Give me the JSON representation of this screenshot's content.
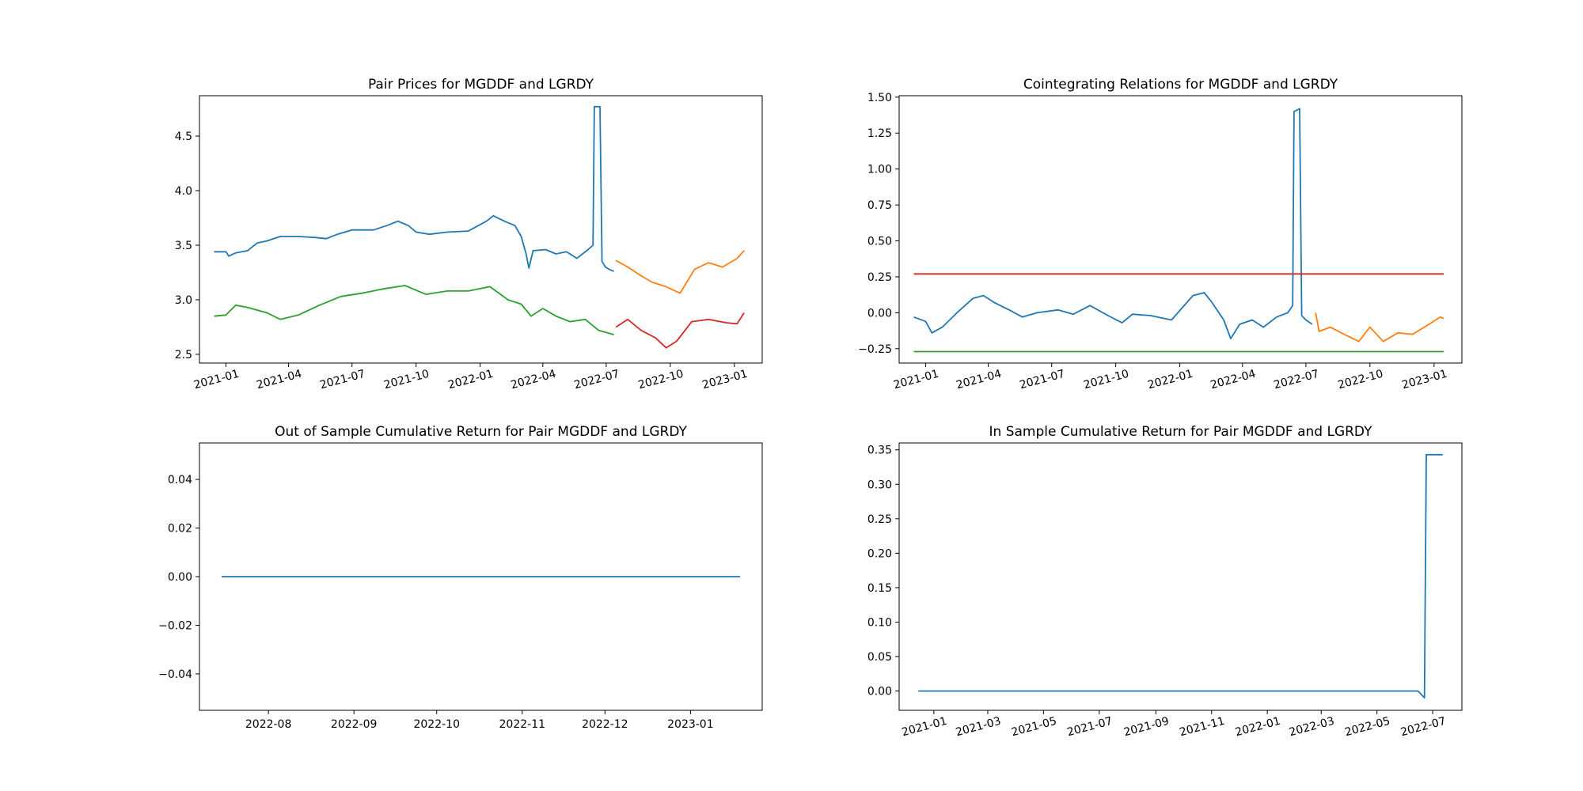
{
  "colors": {
    "blue": "#1f77b4",
    "orange": "#ff7f0e",
    "green": "#2ca02c",
    "red": "#d62728"
  },
  "chart_data": [
    {
      "type": "line",
      "title": "Pair Prices for MGDDF and LGRDY",
      "xlabel": "",
      "ylabel": "",
      "x_type": "date",
      "xlim": [
        "2020-11-24",
        "2023-02-10"
      ],
      "ylim": [
        2.42,
        4.87
      ],
      "grid": false,
      "xticks": [
        "2021-01",
        "2021-04",
        "2021-07",
        "2021-10",
        "2022-01",
        "2022-04",
        "2022-07",
        "2022-10",
        "2023-01"
      ],
      "yticks": [
        2.5,
        3.0,
        3.5,
        4.0,
        4.5
      ],
      "ytick_format": 1,
      "series": [
        {
          "color": "#1f77b4",
          "points": [
            [
              "2020-12-15",
              3.44
            ],
            [
              "2021-01-01",
              3.44
            ],
            [
              "2021-01-05",
              3.4
            ],
            [
              "2021-01-15",
              3.43
            ],
            [
              "2021-02-01",
              3.45
            ],
            [
              "2021-02-15",
              3.52
            ],
            [
              "2021-03-01",
              3.54
            ],
            [
              "2021-03-20",
              3.58
            ],
            [
              "2021-04-15",
              3.58
            ],
            [
              "2021-05-10",
              3.57
            ],
            [
              "2021-05-25",
              3.56
            ],
            [
              "2021-06-10",
              3.6
            ],
            [
              "2021-07-01",
              3.64
            ],
            [
              "2021-08-01",
              3.64
            ],
            [
              "2021-08-20",
              3.68
            ],
            [
              "2021-09-05",
              3.72
            ],
            [
              "2021-09-20",
              3.68
            ],
            [
              "2021-10-01",
              3.62
            ],
            [
              "2021-10-20",
              3.6
            ],
            [
              "2021-11-15",
              3.62
            ],
            [
              "2021-12-15",
              3.63
            ],
            [
              "2022-01-10",
              3.72
            ],
            [
              "2022-01-20",
              3.77
            ],
            [
              "2022-02-05",
              3.72
            ],
            [
              "2022-02-20",
              3.68
            ],
            [
              "2022-03-01",
              3.58
            ],
            [
              "2022-03-08",
              3.42
            ],
            [
              "2022-03-12",
              3.29
            ],
            [
              "2022-03-18",
              3.45
            ],
            [
              "2022-04-05",
              3.46
            ],
            [
              "2022-04-20",
              3.42
            ],
            [
              "2022-05-05",
              3.44
            ],
            [
              "2022-05-20",
              3.38
            ],
            [
              "2022-06-05",
              3.46
            ],
            [
              "2022-06-12",
              3.5
            ],
            [
              "2022-06-14",
              4.77
            ],
            [
              "2022-06-22",
              4.77
            ],
            [
              "2022-06-25",
              3.35
            ],
            [
              "2022-06-30",
              3.3
            ],
            [
              "2022-07-05",
              3.28
            ],
            [
              "2022-07-12",
              3.26
            ]
          ]
        },
        {
          "color": "#2ca02c",
          "points": [
            [
              "2020-12-15",
              2.85
            ],
            [
              "2021-01-01",
              2.86
            ],
            [
              "2021-01-15",
              2.95
            ],
            [
              "2021-02-01",
              2.93
            ],
            [
              "2021-03-01",
              2.88
            ],
            [
              "2021-03-20",
              2.82
            ],
            [
              "2021-04-15",
              2.86
            ],
            [
              "2021-05-15",
              2.95
            ],
            [
              "2021-06-15",
              3.03
            ],
            [
              "2021-07-15",
              3.06
            ],
            [
              "2021-08-15",
              3.1
            ],
            [
              "2021-09-15",
              3.13
            ],
            [
              "2021-10-15",
              3.05
            ],
            [
              "2021-11-15",
              3.08
            ],
            [
              "2021-12-15",
              3.08
            ],
            [
              "2022-01-15",
              3.12
            ],
            [
              "2022-02-10",
              3.0
            ],
            [
              "2022-03-01",
              2.96
            ],
            [
              "2022-03-15",
              2.85
            ],
            [
              "2022-04-01",
              2.92
            ],
            [
              "2022-04-20",
              2.85
            ],
            [
              "2022-05-10",
              2.8
            ],
            [
              "2022-06-01",
              2.82
            ],
            [
              "2022-06-20",
              2.72
            ],
            [
              "2022-07-12",
              2.68
            ]
          ]
        },
        {
          "color": "#ff7f0e",
          "points": [
            [
              "2022-07-15",
              3.36
            ],
            [
              "2022-08-01",
              3.3
            ],
            [
              "2022-08-20",
              3.22
            ],
            [
              "2022-09-05",
              3.16
            ],
            [
              "2022-09-25",
              3.12
            ],
            [
              "2022-10-15",
              3.06
            ],
            [
              "2022-11-05",
              3.28
            ],
            [
              "2022-11-25",
              3.34
            ],
            [
              "2022-12-15",
              3.3
            ],
            [
              "2023-01-05",
              3.38
            ],
            [
              "2023-01-15",
              3.45
            ]
          ]
        },
        {
          "color": "#d62728",
          "points": [
            [
              "2022-07-15",
              2.75
            ],
            [
              "2022-08-01",
              2.82
            ],
            [
              "2022-08-20",
              2.72
            ],
            [
              "2022-09-10",
              2.65
            ],
            [
              "2022-09-25",
              2.56
            ],
            [
              "2022-10-10",
              2.62
            ],
            [
              "2022-11-01",
              2.8
            ],
            [
              "2022-11-25",
              2.82
            ],
            [
              "2022-12-20",
              2.79
            ],
            [
              "2023-01-05",
              2.78
            ],
            [
              "2023-01-15",
              2.88
            ]
          ]
        }
      ]
    },
    {
      "type": "line",
      "title": "Cointegrating Relations for MGDDF and LGRDY",
      "xlabel": "",
      "ylabel": "",
      "x_type": "date",
      "xlim": [
        "2020-11-24",
        "2023-02-10"
      ],
      "ylim": [
        -0.35,
        1.51
      ],
      "grid": false,
      "xticks": [
        "2021-01",
        "2021-04",
        "2021-07",
        "2021-10",
        "2022-01",
        "2022-04",
        "2022-07",
        "2022-10",
        "2023-01"
      ],
      "yticks": [
        -0.25,
        0.0,
        0.25,
        0.5,
        0.75,
        1.0,
        1.25,
        1.5
      ],
      "ytick_format": 2,
      "series": [
        {
          "color": "#1f77b4",
          "points": [
            [
              "2020-12-15",
              -0.03
            ],
            [
              "2021-01-01",
              -0.06
            ],
            [
              "2021-01-10",
              -0.14
            ],
            [
              "2021-01-25",
              -0.1
            ],
            [
              "2021-02-15",
              0.0
            ],
            [
              "2021-03-10",
              0.1
            ],
            [
              "2021-03-25",
              0.12
            ],
            [
              "2021-04-10",
              0.07
            ],
            [
              "2021-05-01",
              0.02
            ],
            [
              "2021-05-20",
              -0.03
            ],
            [
              "2021-06-10",
              0.0
            ],
            [
              "2021-07-10",
              0.02
            ],
            [
              "2021-08-01",
              -0.01
            ],
            [
              "2021-08-25",
              0.05
            ],
            [
              "2021-09-20",
              -0.02
            ],
            [
              "2021-10-10",
              -0.07
            ],
            [
              "2021-10-25",
              -0.01
            ],
            [
              "2021-11-20",
              -0.02
            ],
            [
              "2021-12-20",
              -0.05
            ],
            [
              "2022-01-20",
              0.12
            ],
            [
              "2022-02-05",
              0.14
            ],
            [
              "2022-02-15",
              0.08
            ],
            [
              "2022-03-05",
              -0.05
            ],
            [
              "2022-03-15",
              -0.18
            ],
            [
              "2022-03-28",
              -0.08
            ],
            [
              "2022-04-15",
              -0.05
            ],
            [
              "2022-05-01",
              -0.1
            ],
            [
              "2022-05-20",
              -0.03
            ],
            [
              "2022-06-05",
              0.0
            ],
            [
              "2022-06-12",
              0.05
            ],
            [
              "2022-06-14",
              1.4
            ],
            [
              "2022-06-22",
              1.42
            ],
            [
              "2022-06-25",
              -0.02
            ],
            [
              "2022-07-01",
              -0.05
            ],
            [
              "2022-07-10",
              -0.08
            ]
          ]
        },
        {
          "color": "#ff7f0e",
          "points": [
            [
              "2022-07-15",
              0.0
            ],
            [
              "2022-07-20",
              -0.13
            ],
            [
              "2022-08-05",
              -0.1
            ],
            [
              "2022-08-25",
              -0.15
            ],
            [
              "2022-09-15",
              -0.2
            ],
            [
              "2022-10-01",
              -0.1
            ],
            [
              "2022-10-20",
              -0.2
            ],
            [
              "2022-11-10",
              -0.14
            ],
            [
              "2022-12-01",
              -0.15
            ],
            [
              "2022-12-25",
              -0.08
            ],
            [
              "2023-01-10",
              -0.03
            ],
            [
              "2023-01-15",
              -0.04
            ]
          ]
        },
        {
          "color": "#d62728",
          "points": [
            [
              "2020-12-15",
              0.27
            ],
            [
              "2023-01-15",
              0.27
            ]
          ]
        },
        {
          "color": "#2ca02c",
          "points": [
            [
              "2020-12-15",
              -0.27
            ],
            [
              "2023-01-15",
              -0.27
            ]
          ]
        }
      ]
    },
    {
      "type": "line",
      "title": "Out of Sample Cumulative Return for Pair MGDDF and LGRDY",
      "xlabel": "",
      "ylabel": "",
      "x_type": "date",
      "xlim": [
        "2022-07-07",
        "2023-01-27"
      ],
      "ylim": [
        -0.055,
        0.055
      ],
      "grid": false,
      "xticks": [
        "2022-08",
        "2022-09",
        "2022-10",
        "2022-11",
        "2022-12",
        "2023-01"
      ],
      "yticks": [
        -0.04,
        -0.02,
        0.0,
        0.02,
        0.04
      ],
      "ytick_format": 2,
      "tick_rotation": 0,
      "series": [
        {
          "color": "#1f77b4",
          "points": [
            [
              "2022-07-15",
              0.0
            ],
            [
              "2023-01-19",
              0.0
            ]
          ]
        }
      ]
    },
    {
      "type": "line",
      "title": "In Sample Cumulative Return for Pair MGDDF and LGRDY",
      "xlabel": "",
      "ylabel": "",
      "x_type": "date",
      "xlim": [
        "2020-11-24",
        "2022-08-02"
      ],
      "ylim": [
        -0.028,
        0.36
      ],
      "grid": false,
      "xticks": [
        "2021-01",
        "2021-03",
        "2021-05",
        "2021-07",
        "2021-09",
        "2021-11",
        "2022-01",
        "2022-03",
        "2022-05",
        "2022-07"
      ],
      "yticks": [
        0.0,
        0.05,
        0.1,
        0.15,
        0.2,
        0.25,
        0.3,
        0.35
      ],
      "ytick_format": 2,
      "series": [
        {
          "color": "#1f77b4",
          "points": [
            [
              "2020-12-15",
              0.0
            ],
            [
              "2022-06-15",
              0.0
            ],
            [
              "2022-06-22",
              -0.01
            ],
            [
              "2022-06-24",
              0.343
            ],
            [
              "2022-07-12",
              0.343
            ]
          ]
        }
      ]
    }
  ]
}
